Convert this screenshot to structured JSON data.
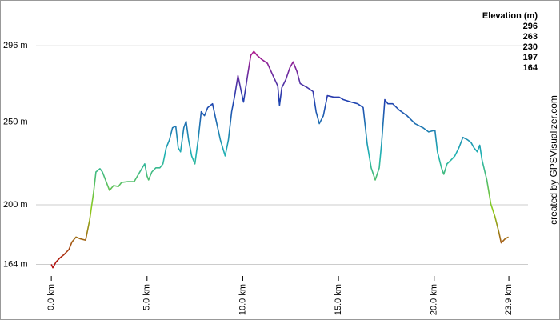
{
  "chart_data": {
    "type": "line",
    "legend_title": "Elevation (m)",
    "legend_position": "top-right",
    "color_scale": [
      {
        "value": 296,
        "color": "#c0168c"
      },
      {
        "value": 263,
        "color": "#1f3fb0"
      },
      {
        "value": 230,
        "color": "#1fb3b3"
      },
      {
        "value": 197,
        "color": "#8ccc1a"
      },
      {
        "value": 164,
        "color": "#b31010"
      }
    ],
    "credit": "created by GPSVisualizer.com",
    "xlim": [
      -0.8,
      24.9
    ],
    "ylim": [
      157,
      314
    ],
    "xticks": [
      {
        "value": 0,
        "label": "0.0 km"
      },
      {
        "value": 5,
        "label": "5.0 km"
      },
      {
        "value": 10,
        "label": "10.0 km"
      },
      {
        "value": 15,
        "label": "15.0 km"
      },
      {
        "value": 20,
        "label": "20.0 km"
      },
      {
        "value": 23.9,
        "label": "23.9 km"
      }
    ],
    "yticks": [
      {
        "value": 164,
        "label": "164 m"
      },
      {
        "value": 200,
        "label": "200 m"
      },
      {
        "value": 250,
        "label": "250 m"
      },
      {
        "value": 296,
        "label": "296 m"
      }
    ],
    "grid": true,
    "x": [
      0,
      0.08,
      0.25,
      0.46,
      0.67,
      0.92,
      1.08,
      1.29,
      1.5,
      1.79,
      2.0,
      2.21,
      2.33,
      2.54,
      2.67,
      2.88,
      3.04,
      3.25,
      3.5,
      3.67,
      4.0,
      4.33,
      4.5,
      4.75,
      4.88,
      5.0,
      5.08,
      5.25,
      5.46,
      5.67,
      5.83,
      6.0,
      6.17,
      6.33,
      6.5,
      6.63,
      6.75,
      6.92,
      7.04,
      7.17,
      7.33,
      7.5,
      7.67,
      7.83,
      8.0,
      8.17,
      8.42,
      8.58,
      8.83,
      9.08,
      9.25,
      9.42,
      9.58,
      9.75,
      9.92,
      10.04,
      10.25,
      10.42,
      10.58,
      10.75,
      11.0,
      11.29,
      11.58,
      11.83,
      11.92,
      12.04,
      12.25,
      12.46,
      12.63,
      12.83,
      13.0,
      13.38,
      13.67,
      13.83,
      14.0,
      14.21,
      14.42,
      14.75,
      15.04,
      15.25,
      15.67,
      16.0,
      16.29,
      16.5,
      16.71,
      16.92,
      17.13,
      17.25,
      17.42,
      17.58,
      17.83,
      18.17,
      18.58,
      19.0,
      19.42,
      19.71,
      20.04,
      20.17,
      20.38,
      20.5,
      20.67,
      20.88,
      21.08,
      21.29,
      21.5,
      21.75,
      21.92,
      22.08,
      22.25,
      22.38,
      22.5,
      22.75,
      22.96,
      23.17,
      23.38,
      23.5,
      23.71,
      23.88
    ],
    "values": [
      164,
      162,
      165.5,
      168,
      170,
      173,
      177.6,
      180.5,
      179.5,
      178.6,
      190.7,
      207.7,
      219.8,
      221.8,
      219.8,
      213.5,
      208.7,
      211.6,
      211,
      213.5,
      214,
      214,
      217.4,
      222.3,
      224.7,
      217.4,
      215,
      219.8,
      222.3,
      222.3,
      224.7,
      234.4,
      239.2,
      246.5,
      247.5,
      234.4,
      232,
      246.5,
      250.4,
      239.2,
      229.5,
      224.7,
      239.2,
      256.2,
      253.8,
      258.7,
      261,
      252.4,
      239.2,
      229.5,
      239.2,
      256.2,
      265.9,
      278,
      268.4,
      262,
      278,
      290.2,
      292.6,
      290.2,
      287.7,
      285.4,
      278,
      271.7,
      260,
      270.7,
      275.6,
      282.8,
      286.3,
      280.5,
      273.2,
      270.7,
      268.4,
      256.2,
      249,
      253.8,
      265.9,
      265,
      265,
      263.5,
      262,
      261,
      258.7,
      236.8,
      222.3,
      215,
      222.3,
      236.8,
      263.5,
      261,
      261,
      257.2,
      253.8,
      249,
      246.5,
      244,
      245,
      232,
      222.3,
      218.4,
      224.7,
      227,
      229.5,
      234.4,
      240.7,
      239.2,
      237.7,
      234.4,
      232,
      236,
      227,
      215,
      200.4,
      193,
      183.4,
      177,
      179.5,
      180.5
    ]
  }
}
